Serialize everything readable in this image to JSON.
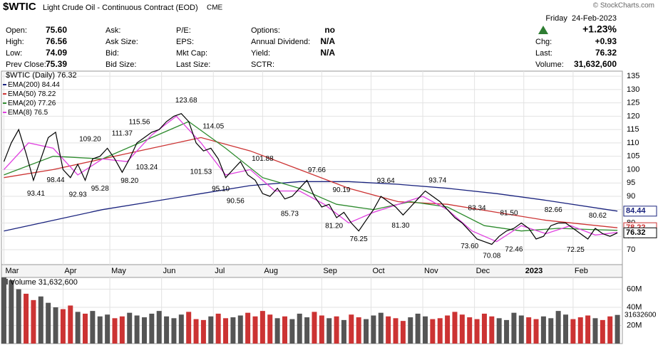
{
  "header": {
    "symbol": "$WTIC",
    "description": "Light Crude Oil - Continuous Contract (EOD)",
    "exchange": "CME",
    "watermark": "© StockCharts.com",
    "date": "Friday  24-Feb-2023",
    "change_pct": "+1.23%",
    "fields": [
      [
        [
          "Open:",
          "75.60"
        ],
        [
          "High:",
          "76.56"
        ],
        [
          "Low:",
          "74.09"
        ],
        [
          "Prev Close:",
          "75.39"
        ]
      ],
      [
        [
          "Ask:",
          ""
        ],
        [
          "Ask Size:",
          ""
        ],
        [
          "Bid:",
          ""
        ],
        [
          "Bid Size:",
          ""
        ]
      ],
      [
        [
          "P/E:",
          ""
        ],
        [
          "EPS:",
          ""
        ],
        [
          "Mkt Cap:",
          ""
        ],
        [
          "Last Size:",
          ""
        ]
      ],
      [
        [
          "Options:",
          "no"
        ],
        [
          "Annual Dividend:",
          "N/A"
        ],
        [
          "Yield:",
          "N/A"
        ],
        [
          "SCTR:",
          ""
        ]
      ],
      [
        [
          "Chg:",
          "+0.93"
        ],
        [
          "Last:",
          "76.32"
        ],
        [
          "Volume:",
          "31,632,600"
        ]
      ]
    ]
  },
  "chart_data": {
    "type": "line",
    "title": "$WTIC (Daily)",
    "xlim": [
      -1,
      251
    ],
    "xticks": [
      {
        "value": 0,
        "label": "Mar"
      },
      {
        "value": 24,
        "label": "Apr"
      },
      {
        "value": 43,
        "label": "May"
      },
      {
        "value": 64,
        "label": "Jun"
      },
      {
        "value": 85,
        "label": "Jul"
      },
      {
        "value": 105,
        "label": "Aug"
      },
      {
        "value": 129,
        "label": "Sep"
      },
      {
        "value": 149,
        "label": "Oct"
      },
      {
        "value": 170,
        "label": "Nov"
      },
      {
        "value": 191,
        "label": "Dec"
      },
      {
        "value": 211,
        "label": "2023"
      },
      {
        "value": 231,
        "label": "Feb"
      }
    ],
    "ylim": [
      64.4,
      136.9
    ],
    "yticks": [
      70,
      75,
      80,
      85,
      90,
      95,
      100,
      105,
      110,
      115,
      120,
      125,
      130,
      135
    ],
    "grid": true,
    "price": {
      "color": "#000000",
      "x": [
        0,
        3,
        6,
        9,
        12,
        15,
        18,
        21,
        24,
        27,
        30,
        33,
        36,
        39,
        42,
        45,
        48,
        51,
        54,
        57,
        60,
        63,
        66,
        69,
        72,
        75,
        78,
        81,
        84,
        87,
        90,
        93,
        96,
        99,
        102,
        105,
        108,
        111,
        114,
        117,
        120,
        123,
        126,
        129,
        132,
        135,
        138,
        141,
        144,
        147,
        150,
        153,
        156,
        159,
        162,
        165,
        168,
        171,
        174,
        177,
        180,
        183,
        186,
        189,
        192,
        195,
        198,
        201,
        204,
        207,
        210,
        213,
        216,
        219,
        222,
        225,
        228,
        231,
        234,
        237,
        240,
        243,
        246,
        249
      ],
      "values": [
        103,
        110,
        115,
        106,
        96,
        104,
        112,
        114,
        100,
        97,
        102,
        96,
        104,
        105,
        108,
        104,
        99,
        104,
        110,
        112,
        114,
        115,
        118,
        120,
        121,
        118,
        110,
        107,
        108,
        104,
        97,
        100,
        103,
        98,
        96,
        91,
        90,
        93,
        89,
        90,
        93,
        96,
        90,
        86,
        87,
        82,
        84,
        80,
        77,
        81,
        85,
        90,
        88,
        86,
        83,
        86,
        89,
        92,
        90,
        88,
        85,
        82,
        80,
        77,
        74,
        73,
        72,
        75,
        77,
        78,
        80,
        78,
        74,
        75,
        79,
        80,
        80,
        78,
        76,
        74,
        78,
        76,
        75,
        76.32
      ]
    },
    "series": [
      {
        "name": "EMA(200)",
        "color": "#1a237e",
        "x": [
          0,
          20,
          40,
          60,
          80,
          100,
          120,
          140,
          160,
          180,
          200,
          220,
          249
        ],
        "values": [
          77,
          81,
          85,
          88,
          91,
          94,
          95.5,
          95.5,
          94.5,
          93,
          91,
          88.5,
          84.44
        ]
      },
      {
        "name": "EMA(50)",
        "color": "#cc3333",
        "x": [
          0,
          20,
          40,
          60,
          80,
          100,
          120,
          140,
          160,
          180,
          200,
          220,
          249
        ],
        "values": [
          97,
          100,
          104,
          108,
          112,
          107,
          100,
          93,
          88,
          87,
          84,
          81,
          78.22
        ]
      },
      {
        "name": "EMA(20)",
        "color": "#2e8b2e",
        "x": [
          0,
          20,
          40,
          60,
          75,
          90,
          105,
          120,
          135,
          150,
          165,
          180,
          195,
          210,
          225,
          240,
          249
        ],
        "values": [
          98,
          105,
          104,
          112,
          118,
          108,
          97,
          93,
          87,
          85,
          88,
          86,
          79,
          77,
          78,
          77.5,
          77.26
        ]
      },
      {
        "name": "EMA(8)",
        "color": "#e040e0",
        "x": [
          0,
          10,
          20,
          30,
          40,
          50,
          60,
          70,
          80,
          90,
          100,
          110,
          120,
          130,
          140,
          150,
          160,
          170,
          180,
          190,
          200,
          210,
          220,
          230,
          240,
          249
        ],
        "values": [
          100,
          110,
          108,
          98,
          104,
          103,
          113,
          120,
          110,
          98,
          100,
          92,
          92,
          87,
          80,
          84,
          87,
          90,
          85,
          77,
          73,
          79,
          76,
          79,
          75.5,
          76.5
        ]
      }
    ],
    "annotations": {
      "x": [
        13,
        21,
        30,
        39,
        35,
        48,
        51,
        55,
        58,
        74,
        85,
        80,
        88,
        94,
        105,
        116,
        127,
        137,
        134,
        144,
        155,
        161,
        176,
        192,
        189,
        198,
        205,
        207,
        223,
        232,
        241
      ],
      "values": [
        93.41,
        98.44,
        92.93,
        95.28,
        109.2,
        111.37,
        98.2,
        115.56,
        103.24,
        123.68,
        114.05,
        101.53,
        95.1,
        90.56,
        101.88,
        85.73,
        97.66,
        90.19,
        81.2,
        76.25,
        93.64,
        81.3,
        93.74,
        83.34,
        73.6,
        70.08,
        81.5,
        72.46,
        82.66,
        72.25,
        80.62
      ],
      "value_labels": [
        "93.41",
        "98.44",
        "92.93",
        "95.28",
        "109.20",
        "111.37",
        "98.20",
        "115.56",
        "103.24",
        "123.68",
        "114.05",
        "101.53",
        "95.10",
        "90.56",
        "101.88",
        "85.73",
        "97.66",
        "90.19",
        "81.20",
        "76.25",
        "93.64",
        "81.30",
        "93.74",
        "83.34",
        "73.60",
        "70.08",
        "81.50",
        "72.46",
        "82.66",
        "72.25",
        "80.62"
      ]
    },
    "volume": {
      "name": "Volume",
      "up_color": "#555555",
      "down_color": "#cc3333",
      "ylim": [
        0,
        73000000
      ],
      "yticks": [
        {
          "value": 20000000,
          "label": "20M"
        },
        {
          "value": 40000000,
          "label": "40M"
        },
        {
          "value": 60000000,
          "label": "60M"
        }
      ],
      "values": [
        75000000,
        70000000,
        60000000,
        55000000,
        48000000,
        52000000,
        45000000,
        40000000,
        38000000,
        42000000,
        35000000,
        33000000,
        36000000,
        30000000,
        32000000,
        28000000,
        30000000,
        34000000,
        31000000,
        29000000,
        33000000,
        36000000,
        30000000,
        28000000,
        32000000,
        35000000,
        27000000,
        26000000,
        30000000,
        33000000,
        28000000,
        29000000,
        31000000,
        34000000,
        30000000,
        36000000,
        32000000,
        28000000,
        30000000,
        27000000,
        33000000,
        29000000,
        35000000,
        31000000,
        28000000,
        30000000,
        26000000,
        32000000,
        29000000,
        27000000,
        31000000,
        34000000,
        30000000,
        28000000,
        25000000,
        29000000,
        33000000,
        30000000,
        27000000,
        28000000,
        31000000,
        35000000,
        32000000,
        29000000,
        27000000,
        33000000,
        30000000,
        28000000,
        26000000,
        34000000,
        31000000,
        29000000,
        27000000,
        30000000,
        28000000,
        36000000,
        32000000,
        27000000,
        29000000,
        31000000,
        28000000,
        26000000,
        30000000,
        31632600
      ]
    }
  }
}
